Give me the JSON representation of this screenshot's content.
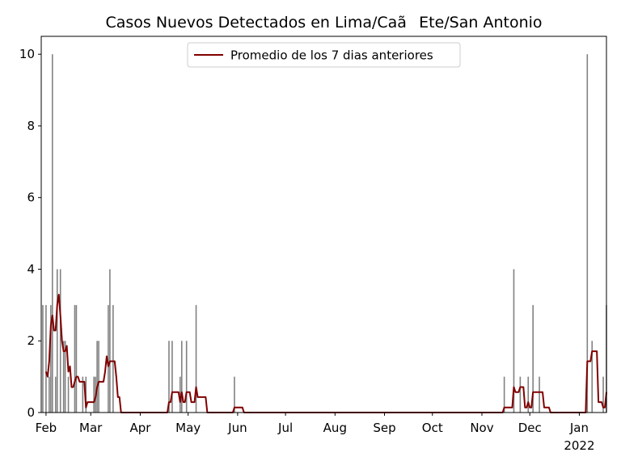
{
  "chart_data": {
    "type": "bar",
    "title": "Casos Nuevos Detectados en Lima/CaãEte/San Antonio",
    "xlabel": "",
    "ylabel": "",
    "x_range": [
      "2021-01-29",
      "2022-01-18"
    ],
    "ylim": [
      0,
      10.5
    ],
    "grid": false,
    "legend_position": "top-center",
    "y_ticks": [
      0,
      2,
      4,
      6,
      8,
      10
    ],
    "x_ticks": [
      {
        "date": "2021-02-01",
        "label": "Feb"
      },
      {
        "date": "2021-03-01",
        "label": "Mar"
      },
      {
        "date": "2021-04-01",
        "label": "Apr"
      },
      {
        "date": "2021-05-01",
        "label": "May"
      },
      {
        "date": "2021-06-01",
        "label": "Jun"
      },
      {
        "date": "2021-07-01",
        "label": "Jul"
      },
      {
        "date": "2021-08-01",
        "label": "Aug"
      },
      {
        "date": "2021-09-01",
        "label": "Sep"
      },
      {
        "date": "2021-10-01",
        "label": "Oct"
      },
      {
        "date": "2021-11-01",
        "label": "Nov"
      },
      {
        "date": "2021-12-01",
        "label": "Dec"
      },
      {
        "date": "2022-01-01",
        "label": "Jan",
        "sublabel": "2022"
      }
    ],
    "series": [
      {
        "kind": "bar",
        "color": "#808080",
        "points": [
          [
            "2021-01-30",
            3
          ],
          [
            "2021-02-01",
            3
          ],
          [
            "2021-02-03",
            1
          ],
          [
            "2021-02-04",
            3
          ],
          [
            "2021-02-05",
            10
          ],
          [
            "2021-02-07",
            1
          ],
          [
            "2021-02-08",
            4
          ],
          [
            "2021-02-10",
            4
          ],
          [
            "2021-02-12",
            2
          ],
          [
            "2021-02-13",
            2
          ],
          [
            "2021-02-15",
            1
          ],
          [
            "2021-02-19",
            3
          ],
          [
            "2021-02-20",
            3
          ],
          [
            "2021-02-24",
            1
          ],
          [
            "2021-02-26",
            1
          ],
          [
            "2021-03-03",
            1
          ],
          [
            "2021-03-04",
            1
          ],
          [
            "2021-03-05",
            2
          ],
          [
            "2021-03-06",
            2
          ],
          [
            "2021-03-12",
            3
          ],
          [
            "2021-03-13",
            4
          ],
          [
            "2021-03-15",
            3
          ],
          [
            "2021-04-19",
            2
          ],
          [
            "2021-04-21",
            2
          ],
          [
            "2021-04-26",
            1
          ],
          [
            "2021-04-27",
            2
          ],
          [
            "2021-04-30",
            2
          ],
          [
            "2021-05-06",
            3
          ],
          [
            "2021-05-30",
            1
          ],
          [
            "2021-11-15",
            1
          ],
          [
            "2021-11-21",
            4
          ],
          [
            "2021-11-25",
            1
          ],
          [
            "2021-11-30",
            1
          ],
          [
            "2021-12-03",
            3
          ],
          [
            "2021-12-07",
            1
          ],
          [
            "2022-01-06",
            10
          ],
          [
            "2022-01-09",
            2
          ],
          [
            "2022-01-16",
            1
          ],
          [
            "2022-01-18",
            3
          ]
        ]
      },
      {
        "kind": "line",
        "name": "Promedio de los 7 dias anteriores",
        "color": "#800000",
        "points": [
          [
            "2021-02-01",
            1.14
          ],
          [
            "2021-02-02",
            1.0
          ],
          [
            "2021-02-03",
            1.43
          ],
          [
            "2021-02-04",
            2.43
          ],
          [
            "2021-02-05",
            2.71
          ],
          [
            "2021-02-06",
            2.29
          ],
          [
            "2021-02-07",
            2.29
          ],
          [
            "2021-02-08",
            3.0
          ],
          [
            "2021-02-09",
            3.29
          ],
          [
            "2021-02-10",
            2.71
          ],
          [
            "2021-02-11",
            2.0
          ],
          [
            "2021-02-12",
            1.71
          ],
          [
            "2021-02-13",
            1.71
          ],
          [
            "2021-02-14",
            1.86
          ],
          [
            "2021-02-15",
            1.14
          ],
          [
            "2021-02-16",
            1.29
          ],
          [
            "2021-02-17",
            0.71
          ],
          [
            "2021-02-18",
            0.71
          ],
          [
            "2021-02-19",
            0.86
          ],
          [
            "2021-02-20",
            1.0
          ],
          [
            "2021-02-21",
            1.0
          ],
          [
            "2021-02-22",
            0.86
          ],
          [
            "2021-02-23",
            0.86
          ],
          [
            "2021-02-24",
            0.86
          ],
          [
            "2021-02-25",
            0.86
          ],
          [
            "2021-02-26",
            0.14
          ],
          [
            "2021-02-27",
            0.29
          ],
          [
            "2021-02-28",
            0.29
          ],
          [
            "2021-03-01",
            0.29
          ],
          [
            "2021-03-02",
            0.29
          ],
          [
            "2021-03-03",
            0.29
          ],
          [
            "2021-03-04",
            0.43
          ],
          [
            "2021-03-05",
            0.71
          ],
          [
            "2021-03-06",
            0.86
          ],
          [
            "2021-03-07",
            0.86
          ],
          [
            "2021-03-08",
            0.86
          ],
          [
            "2021-03-09",
            0.86
          ],
          [
            "2021-03-10",
            1.14
          ],
          [
            "2021-03-11",
            1.57
          ],
          [
            "2021-03-12",
            1.29
          ],
          [
            "2021-03-13",
            1.43
          ],
          [
            "2021-03-14",
            1.43
          ],
          [
            "2021-03-15",
            1.43
          ],
          [
            "2021-03-16",
            1.43
          ],
          [
            "2021-03-17",
            1.0
          ],
          [
            "2021-03-18",
            0.43
          ],
          [
            "2021-03-19",
            0.43
          ],
          [
            "2021-03-20",
            0.0
          ],
          [
            "2021-04-17",
            0.0
          ],
          [
            "2021-04-18",
            0.0
          ],
          [
            "2021-04-19",
            0.29
          ],
          [
            "2021-04-20",
            0.29
          ],
          [
            "2021-04-21",
            0.57
          ],
          [
            "2021-04-22",
            0.57
          ],
          [
            "2021-04-23",
            0.57
          ],
          [
            "2021-04-24",
            0.57
          ],
          [
            "2021-04-25",
            0.57
          ],
          [
            "2021-04-26",
            0.29
          ],
          [
            "2021-04-27",
            0.57
          ],
          [
            "2021-04-28",
            0.29
          ],
          [
            "2021-04-29",
            0.29
          ],
          [
            "2021-04-30",
            0.57
          ],
          [
            "2021-05-01",
            0.57
          ],
          [
            "2021-05-02",
            0.57
          ],
          [
            "2021-05-03",
            0.29
          ],
          [
            "2021-05-04",
            0.29
          ],
          [
            "2021-05-05",
            0.29
          ],
          [
            "2021-05-06",
            0.71
          ],
          [
            "2021-05-07",
            0.43
          ],
          [
            "2021-05-08",
            0.43
          ],
          [
            "2021-05-09",
            0.43
          ],
          [
            "2021-05-10",
            0.43
          ],
          [
            "2021-05-11",
            0.43
          ],
          [
            "2021-05-12",
            0.43
          ],
          [
            "2021-05-13",
            0.0
          ],
          [
            "2021-05-29",
            0.0
          ],
          [
            "2021-05-30",
            0.14
          ],
          [
            "2021-05-31",
            0.14
          ],
          [
            "2021-06-01",
            0.14
          ],
          [
            "2021-06-02",
            0.14
          ],
          [
            "2021-06-03",
            0.14
          ],
          [
            "2021-06-04",
            0.14
          ],
          [
            "2021-06-05",
            0.0
          ],
          [
            "2021-11-14",
            0.0
          ],
          [
            "2021-11-15",
            0.14
          ],
          [
            "2021-11-16",
            0.14
          ],
          [
            "2021-11-17",
            0.14
          ],
          [
            "2021-11-18",
            0.14
          ],
          [
            "2021-11-19",
            0.14
          ],
          [
            "2021-11-20",
            0.14
          ],
          [
            "2021-11-21",
            0.71
          ],
          [
            "2021-11-22",
            0.57
          ],
          [
            "2021-11-23",
            0.57
          ],
          [
            "2021-11-24",
            0.57
          ],
          [
            "2021-11-25",
            0.71
          ],
          [
            "2021-11-26",
            0.71
          ],
          [
            "2021-11-27",
            0.71
          ],
          [
            "2021-11-28",
            0.14
          ],
          [
            "2021-11-29",
            0.14
          ],
          [
            "2021-11-30",
            0.29
          ],
          [
            "2021-12-01",
            0.14
          ],
          [
            "2021-12-02",
            0.14
          ],
          [
            "2021-12-03",
            0.57
          ],
          [
            "2021-12-04",
            0.57
          ],
          [
            "2021-12-05",
            0.57
          ],
          [
            "2021-12-06",
            0.57
          ],
          [
            "2021-12-07",
            0.57
          ],
          [
            "2021-12-08",
            0.57
          ],
          [
            "2021-12-09",
            0.57
          ],
          [
            "2021-12-10",
            0.14
          ],
          [
            "2021-12-11",
            0.14
          ],
          [
            "2021-12-12",
            0.14
          ],
          [
            "2021-12-13",
            0.14
          ],
          [
            "2021-12-14",
            0.0
          ],
          [
            "2022-01-05",
            0.0
          ],
          [
            "2022-01-06",
            1.43
          ],
          [
            "2022-01-07",
            1.43
          ],
          [
            "2022-01-08",
            1.43
          ],
          [
            "2022-01-09",
            1.71
          ],
          [
            "2022-01-10",
            1.71
          ],
          [
            "2022-01-11",
            1.71
          ],
          [
            "2022-01-12",
            1.71
          ],
          [
            "2022-01-13",
            0.29
          ],
          [
            "2022-01-14",
            0.29
          ],
          [
            "2022-01-15",
            0.29
          ],
          [
            "2022-01-16",
            0.14
          ],
          [
            "2022-01-17",
            0.14
          ],
          [
            "2022-01-18",
            0.57
          ]
        ]
      }
    ]
  }
}
